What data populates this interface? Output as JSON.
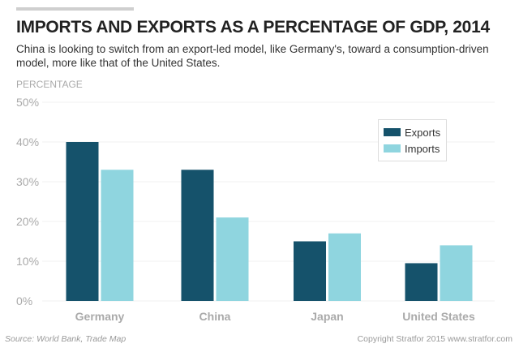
{
  "header": {
    "title": "IMPORTS AND EXPORTS AS A PERCENTAGE OF GDP, 2014",
    "subtitle": "China is looking to switch from an export-led model, like Germany's, toward a consumption-driven model, more like that of the United States."
  },
  "footer": {
    "source": "Source: World Bank, Trade Map",
    "copyright": "Copyright Stratfor 2015   www.stratfor.com"
  },
  "colors": {
    "exports": "#15526b",
    "imports": "#8fd5df",
    "grid": "#f0f0f0",
    "tick": "#aaaaaa"
  },
  "chart_data": {
    "type": "bar",
    "title": "IMPORTS AND EXPORTS AS A PERCENTAGE OF GDP, 2014",
    "xlabel": "",
    "ylabel": "PERCENTAGE",
    "ylim": [
      0,
      50
    ],
    "yticks": [
      "0%",
      "10%",
      "20%",
      "30%",
      "40%",
      "50%"
    ],
    "ytick_values": [
      0,
      10,
      20,
      30,
      40,
      50
    ],
    "grid": true,
    "legend_position": "top-right",
    "categories": [
      "Germany",
      "China",
      "Japan",
      "United States"
    ],
    "series": [
      {
        "name": "Exports",
        "values": [
          40,
          33,
          15,
          9.5
        ]
      },
      {
        "name": "Imports",
        "values": [
          33,
          21,
          17,
          14
        ]
      }
    ]
  }
}
